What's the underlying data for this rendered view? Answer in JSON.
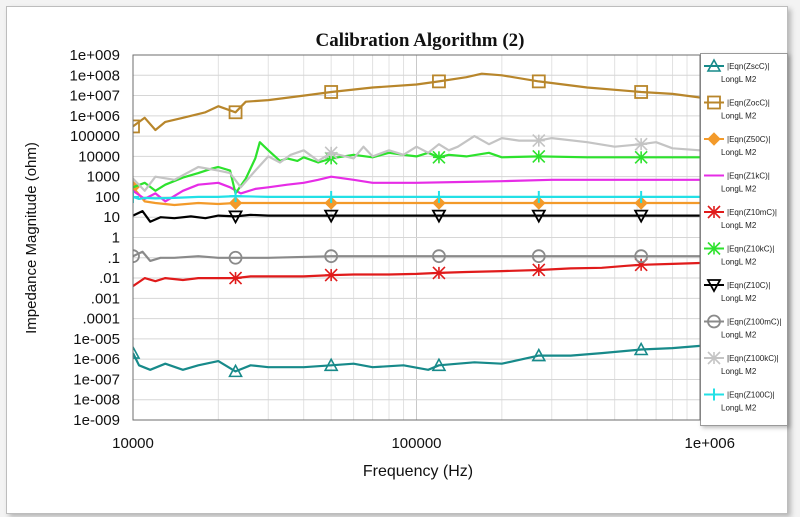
{
  "chart_data": {
    "type": "line",
    "title": "Calibration Algorithm (2)",
    "xlabel": "Frequency (Hz)",
    "ylabel": "Impedance Magnitude (ohm)",
    "xscale": "log",
    "yscale": "log",
    "xlim": [
      10000,
      1000000
    ],
    "ylim": [
      1e-09,
      1000000000.0
    ],
    "grid": true,
    "legend_position": "right",
    "xticks": [
      {
        "value": 10000,
        "label": "10000"
      },
      {
        "value": 100000,
        "label": "100000"
      },
      {
        "value": 1000000,
        "label": "1e+006"
      }
    ],
    "yticks": [
      {
        "value": 1000000000.0,
        "label": "1e+009"
      },
      {
        "value": 100000000.0,
        "label": "1e+008"
      },
      {
        "value": 10000000.0,
        "label": "1e+007"
      },
      {
        "value": 1000000.0,
        "label": "1e+006"
      },
      {
        "value": 100000.0,
        "label": "100000"
      },
      {
        "value": 10000.0,
        "label": "10000"
      },
      {
        "value": 1000.0,
        "label": "1000"
      },
      {
        "value": 100.0,
        "label": "100"
      },
      {
        "value": 10.0,
        "label": "10"
      },
      {
        "value": 1,
        "label": "1"
      },
      {
        "value": 0.1,
        "label": ".1"
      },
      {
        "value": 0.01,
        "label": ".01"
      },
      {
        "value": 0.001,
        "label": ".001"
      },
      {
        "value": 0.0001,
        "label": ".0001"
      },
      {
        "value": 1e-05,
        "label": "1e-005"
      },
      {
        "value": 1e-06,
        "label": "1e-006"
      },
      {
        "value": 1e-07,
        "label": "1e-007"
      },
      {
        "value": 1e-08,
        "label": "1e-008"
      },
      {
        "value": 1e-09,
        "label": "1e-009"
      }
    ],
    "series": [
      {
        "name": "|Eqn(ZscC)|",
        "sub": "LongL M2",
        "color": "#178a8a",
        "marker": "triangle",
        "marker_x": [
          10000,
          23000,
          50000,
          120000,
          270000,
          620000
        ],
        "x": [
          10000,
          10500,
          11500,
          13000,
          15000,
          17000,
          20000,
          23000,
          26000,
          30000,
          40000,
          50000,
          60000,
          70000,
          90000,
          110000,
          120000,
          140000,
          160000,
          200000,
          270000,
          350000,
          450000,
          620000,
          800000,
          1000000
        ],
        "y": [
          2e-06,
          5e-07,
          3e-07,
          6e-07,
          3e-07,
          5e-07,
          8e-07,
          2.5e-07,
          5e-07,
          4e-07,
          4e-07,
          5e-07,
          6e-07,
          4e-07,
          5e-07,
          3e-07,
          5e-07,
          6e-07,
          7e-07,
          6e-07,
          1.5e-06,
          1.5e-06,
          2e-06,
          3e-06,
          3.5e-06,
          4.5e-06
        ]
      },
      {
        "name": "|Eqn(ZocC)|",
        "sub": "LongL M2",
        "color": "#b8862b",
        "marker": "square",
        "marker_x": [
          10000,
          23000,
          50000,
          120000,
          270000,
          620000
        ],
        "x": [
          10000,
          11000,
          12000,
          13000,
          15000,
          18000,
          20000,
          23000,
          25000,
          30000,
          40000,
          50000,
          70000,
          100000,
          120000,
          150000,
          170000,
          200000,
          270000,
          400000,
          620000,
          800000,
          1000000
        ],
        "y": [
          300000.0,
          800000.0,
          200000.0,
          500000.0,
          800000.0,
          1500000.0,
          3000000.0,
          1500000.0,
          5000000.0,
          6000000.0,
          10000000.0,
          15000000.0,
          25000000.0,
          35000000.0,
          50000000.0,
          80000000.0,
          120000000.0,
          100000000.0,
          50000000.0,
          25000000.0,
          15000000.0,
          12000000.0,
          8000000.0
        ]
      },
      {
        "name": "|Eqn(Z50C)|",
        "sub": "LongL M2",
        "color": "#f39a2a",
        "marker": "diamond",
        "marker_x": [
          10000,
          23000,
          50000,
          120000,
          270000,
          620000
        ],
        "x": [
          10000,
          11000,
          12000,
          14000,
          17000,
          20000,
          23000,
          30000,
          50000,
          100000,
          200000,
          500000,
          1000000
        ],
        "y": [
          300,
          60,
          50,
          40,
          50,
          45,
          50,
          50,
          50,
          50,
          50,
          50,
          50
        ]
      },
      {
        "name": "|Eqn(Z1kC)|",
        "sub": "LongL M2",
        "color": "#e62ce6",
        "marker": "none",
        "x": [
          10000,
          11000,
          12000,
          13000,
          15000,
          17000,
          20000,
          22000,
          24000,
          27000,
          30000,
          35000,
          40000,
          45000,
          50000,
          60000,
          70000,
          100000,
          150000,
          200000,
          300000,
          500000,
          700000,
          1000000
        ],
        "y": [
          200,
          80,
          150,
          60,
          200,
          400,
          500,
          300,
          150,
          250,
          300,
          400,
          500,
          700,
          1000,
          700,
          500,
          500,
          550,
          600,
          700,
          700,
          700,
          700
        ]
      },
      {
        "name": "|Eqn(Z10mC)|",
        "sub": "LongL M2",
        "color": "#e01b1b",
        "marker": "star",
        "marker_x": [
          23000,
          50000,
          120000,
          270000,
          620000
        ],
        "x": [
          10000,
          11000,
          12000,
          13000,
          15000,
          17000,
          20000,
          23000,
          26000,
          30000,
          40000,
          50000,
          60000,
          80000,
          100000,
          120000,
          150000,
          200000,
          270000,
          350000,
          450000,
          550000,
          620000,
          800000,
          1000000
        ],
        "y": [
          0.004,
          0.01,
          0.007,
          0.01,
          0.008,
          0.01,
          0.01,
          0.01,
          0.012,
          0.012,
          0.012,
          0.014,
          0.015,
          0.015,
          0.016,
          0.018,
          0.02,
          0.022,
          0.025,
          0.03,
          0.032,
          0.04,
          0.045,
          0.05,
          0.055
        ]
      },
      {
        "name": "|Eqn(Z10kC)|",
        "sub": "LongL M2",
        "color": "#2de22d",
        "marker": "star",
        "marker_x": [
          50000,
          120000,
          270000,
          620000
        ],
        "x": [
          10000,
          11000,
          12000,
          13000,
          15000,
          17000,
          19000,
          20000,
          22000,
          23000,
          25000,
          27000,
          28000,
          30000,
          33000,
          35000,
          38000,
          40000,
          45000,
          50000,
          60000,
          70000,
          80000,
          90000,
          100000,
          110000,
          120000,
          130000,
          150000,
          180000,
          200000,
          270000,
          400000,
          620000,
          800000,
          1000000
        ],
        "y": [
          300,
          500,
          200,
          400,
          900,
          1500,
          2500,
          3000,
          2000,
          150,
          800,
          8000,
          50000,
          20000,
          6000,
          8000,
          6000,
          9000,
          5000,
          8000,
          12000,
          9000,
          15000,
          12000,
          10000,
          15000,
          9000,
          12000,
          10000,
          15000,
          9000,
          10000,
          9000,
          9000,
          9000,
          9000
        ]
      },
      {
        "name": "|Eqn(Z10C)|",
        "sub": "LongL M2",
        "color": "#000000",
        "marker": "triangle-down",
        "marker_x": [
          23000,
          50000,
          120000,
          270000,
          620000
        ],
        "x": [
          10000,
          10800,
          11500,
          12500,
          14000,
          16000,
          18000,
          20000,
          23000,
          26000,
          30000,
          50000,
          100000,
          200000,
          500000,
          1000000
        ],
        "y": [
          12,
          20,
          6,
          10,
          9,
          11,
          9,
          12,
          11,
          13,
          12,
          12,
          12,
          12,
          12,
          12
        ]
      },
      {
        "name": "|Eqn(Z100mC)|",
        "sub": "LongL M2",
        "color": "#8a8a8a",
        "marker": "circle",
        "marker_x": [
          10000,
          23000,
          50000,
          120000,
          270000,
          620000
        ],
        "x": [
          10000,
          10800,
          11500,
          12500,
          14000,
          17000,
          20000,
          23000,
          30000,
          50000,
          100000,
          200000,
          500000,
          1000000
        ],
        "y": [
          0.12,
          0.2,
          0.07,
          0.1,
          0.1,
          0.12,
          0.1,
          0.1,
          0.1,
          0.12,
          0.12,
          0.12,
          0.12,
          0.12
        ]
      },
      {
        "name": "|Eqn(Z100kC)|",
        "sub": "LongL M2",
        "color": "#c4c4c4",
        "marker": "star",
        "marker_x": [
          50000,
          270000,
          620000
        ],
        "x": [
          10000,
          11000,
          12000,
          14000,
          17000,
          20000,
          22000,
          24000,
          27000,
          30000,
          33000,
          36000,
          40000,
          45000,
          50000,
          60000,
          65000,
          70000,
          80000,
          90000,
          100000,
          110000,
          120000,
          130000,
          140000,
          160000,
          180000,
          200000,
          230000,
          270000,
          300000,
          400000,
          500000,
          620000,
          700000,
          800000,
          1000000
        ],
        "y": [
          800,
          200,
          1000,
          700,
          3000,
          2000,
          1500,
          300,
          2000,
          10000,
          5000,
          12000,
          20000,
          6000,
          15000,
          8000,
          30000,
          10000,
          20000,
          12000,
          30000,
          15000,
          40000,
          20000,
          30000,
          100000,
          40000,
          80000,
          60000,
          60000,
          80000,
          50000,
          30000,
          40000,
          50000,
          25000,
          20000
        ]
      },
      {
        "name": "|Eqn(Z100C)|",
        "sub": "LongL M2",
        "color": "#22e0e6",
        "marker": "plus",
        "marker_x": [
          10000,
          23000,
          50000,
          120000,
          270000,
          620000
        ],
        "x": [
          10000,
          10500,
          11000,
          12000,
          14000,
          17000,
          20000,
          23000,
          30000,
          50000,
          100000,
          200000,
          500000,
          1000000
        ],
        "y": [
          100,
          80,
          90,
          85,
          90,
          100,
          100,
          110,
          100,
          100,
          100,
          100,
          100,
          100
        ]
      }
    ]
  }
}
